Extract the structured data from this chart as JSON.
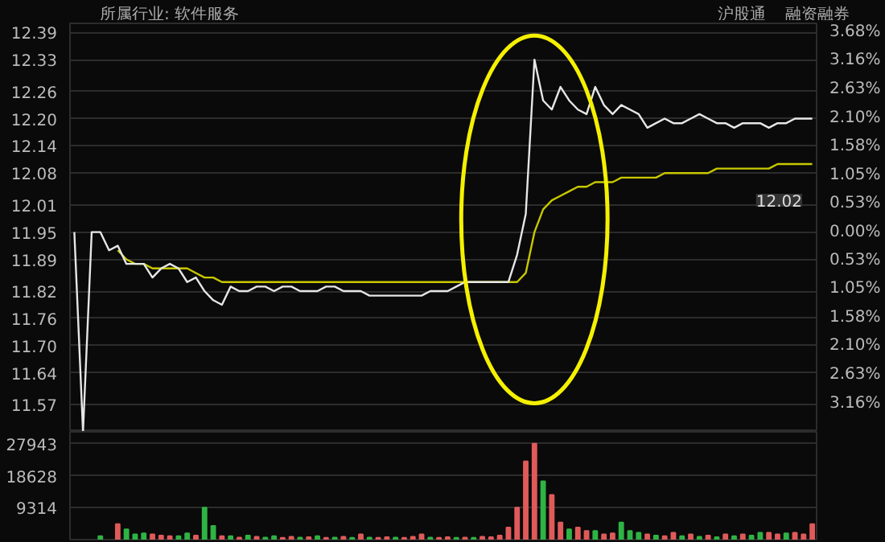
{
  "chart_data": [
    {
      "type": "line",
      "title": "所属行业: 软件服务",
      "annotations": [
        "沪股通",
        "融资融券",
        "12.02"
      ],
      "categories": [
        null,
        null,
        null,
        null,
        null,
        null,
        null,
        null,
        null,
        null,
        null,
        null,
        null,
        null,
        null,
        null,
        null,
        null,
        null,
        null,
        null,
        null,
        null,
        null,
        null,
        null,
        null,
        null,
        null,
        null,
        null,
        null,
        null,
        null,
        null,
        null,
        null,
        null,
        null,
        null,
        null,
        null,
        null,
        null,
        null,
        null,
        null,
        null,
        null,
        null,
        null,
        null,
        null,
        null,
        null,
        null,
        null,
        null,
        null,
        null,
        null,
        null,
        null,
        null,
        null,
        null,
        null,
        null,
        null,
        null,
        null,
        null,
        null,
        null,
        null,
        null,
        null,
        null,
        null,
        null,
        null,
        null,
        null,
        null,
        null,
        null
      ],
      "ylim": [
        11.51,
        12.41
      ],
      "yticks": [
        11.57,
        11.64,
        {
          "value": 11.7,
          "label": "11.70"
        },
        11.76,
        11.82,
        11.89,
        11.95,
        12.01,
        12.08,
        12.14,
        {
          "value": 12.2,
          "label": "12.20"
        },
        12.26,
        12.33,
        12.39
      ],
      "y2lim": [
        -3.682,
        3.849
      ],
      "y2ticks": [
        {
          "value": -3.16,
          "label": "3.16%"
        },
        {
          "value": -2.63,
          "label": "2.63%"
        },
        {
          "value": -2.1,
          "label": "2.10%"
        },
        {
          "value": -1.58,
          "label": "1.58%"
        },
        {
          "value": -1.05,
          "label": "1.05%"
        },
        {
          "value": -0.53,
          "label": "0.53%"
        },
        "0.00%",
        "0.53%",
        "1.05%",
        "1.58%",
        "2.10%",
        "2.63%",
        "3.16%",
        "3.68%"
      ],
      "grid": "y",
      "series": [
        {
          "color": "#e6e6e6",
          "values": [
            11.95,
            11.51,
            11.95,
            11.95,
            11.91,
            11.92,
            11.88,
            11.88,
            11.88,
            11.85,
            11.87,
            11.88,
            11.87,
            11.84,
            11.85,
            11.82,
            11.8,
            11.79,
            11.83,
            11.82,
            11.82,
            11.83,
            11.83,
            11.82,
            11.83,
            11.83,
            11.82,
            11.82,
            11.82,
            11.83,
            11.83,
            11.82,
            11.82,
            11.82,
            11.81,
            11.81,
            11.81,
            11.81,
            11.81,
            11.81,
            11.81,
            11.82,
            11.82,
            11.82,
            11.83,
            11.84,
            11.84,
            11.84,
            11.84,
            11.84,
            11.84,
            11.9,
            11.99,
            12.33,
            12.24,
            12.22,
            12.27,
            12.24,
            12.22,
            12.21,
            12.27,
            12.23,
            12.21,
            12.23,
            12.22,
            12.21,
            12.18,
            12.19,
            12.2,
            12.19,
            12.19,
            12.2,
            12.21,
            12.2,
            12.19,
            12.19,
            12.18,
            12.19,
            12.19,
            12.19,
            12.18,
            12.19,
            12.19,
            12.2,
            12.2,
            12.2
          ]
        },
        {
          "color": "#c8c800",
          "values": [
            null,
            null,
            null,
            null,
            null,
            11.91,
            11.89,
            11.88,
            11.88,
            11.87,
            11.87,
            11.87,
            11.87,
            11.87,
            11.86,
            11.85,
            11.85,
            11.84,
            11.84,
            11.84,
            11.84,
            11.84,
            11.84,
            11.84,
            11.84,
            11.84,
            11.84,
            11.84,
            11.84,
            11.84,
            11.84,
            11.84,
            11.84,
            11.84,
            11.84,
            11.84,
            11.84,
            11.84,
            11.84,
            11.84,
            11.84,
            11.84,
            11.84,
            11.84,
            11.84,
            11.84,
            11.84,
            11.84,
            11.84,
            11.84,
            11.84,
            11.84,
            11.86,
            11.95,
            12.0,
            12.02,
            12.03,
            12.04,
            12.05,
            12.05,
            12.06,
            12.06,
            12.06,
            12.07,
            12.07,
            12.07,
            12.07,
            12.07,
            12.08,
            12.08,
            12.08,
            12.08,
            12.08,
            12.08,
            12.09,
            12.09,
            12.09,
            12.09,
            12.09,
            12.09,
            12.09,
            12.1,
            12.1,
            12.1,
            12.1,
            12.1
          ]
        }
      ]
    },
    {
      "type": "bar",
      "categories": [
        null,
        null,
        null,
        null,
        null,
        null,
        null,
        null,
        null,
        null,
        null,
        null,
        null,
        null,
        null,
        null,
        null,
        null,
        null,
        null,
        null,
        null,
        null,
        null,
        null,
        null,
        null,
        null,
        null,
        null,
        null,
        null,
        null,
        null,
        null,
        null,
        null,
        null,
        null,
        null,
        null,
        null,
        null,
        null,
        null,
        null,
        null,
        null,
        null,
        null,
        null,
        null,
        null,
        null,
        null,
        null,
        null,
        null,
        null,
        null,
        null,
        null,
        null,
        null,
        null,
        null,
        null,
        null,
        null,
        null,
        null,
        null,
        null,
        null,
        null,
        null,
        null,
        null,
        null,
        null,
        null,
        null,
        null,
        null,
        null,
        null
      ],
      "ylim": [
        0,
        31400
      ],
      "yticks": [
        9314,
        18628,
        27943
      ],
      "grid": "y",
      "values": [
        null,
        null,
        null,
        1000,
        null,
        4500,
        3000,
        1500,
        1800,
        1500,
        1200,
        1000,
        1000,
        1800,
        1200,
        9300,
        4000,
        1000,
        1000,
        600,
        1200,
        800,
        600,
        1000,
        500,
        800,
        600,
        700,
        1000,
        500,
        600,
        800,
        500,
        1500,
        600,
        500,
        700,
        600,
        500,
        800,
        1500,
        600,
        500,
        700,
        500,
        600,
        500,
        800,
        700,
        1200,
        3500,
        9300,
        22800,
        27943,
        17000,
        13000,
        5000,
        3000,
        3500,
        2500,
        2500,
        1500,
        1800,
        5000,
        2500,
        2000,
        1500,
        1200,
        1000,
        2000,
        1000,
        1500,
        800,
        1200,
        700,
        1500,
        1000,
        1500,
        1200,
        2000,
        2000,
        1500,
        1800,
        2000,
        1500,
        4500
      ],
      "colors": [
        "#2fb344",
        "#2fb344",
        "#2fb344",
        "#2fb344",
        "#2fb344",
        "#e05a5a",
        "#2fb344",
        "#2fb344",
        "#2fb344",
        "#e05a5a",
        "#e05a5a",
        "#e05a5a",
        "#2fb344",
        "#2fb344",
        "#e05a5a",
        "#2fb344",
        "#2fb344",
        "#e05a5a",
        "#2fb344",
        "#e05a5a",
        "#2fb344",
        "#e05a5a",
        "#2fb344",
        "#2fb344",
        "#e05a5a",
        "#e05a5a",
        "#2fb344",
        "#e05a5a",
        "#2fb344",
        "#e05a5a",
        "#2fb344",
        "#e05a5a",
        "#2fb344",
        "#e05a5a",
        "#2fb344",
        "#e05a5a",
        "#e05a5a",
        "#2fb344",
        "#e05a5a",
        "#e05a5a",
        "#e05a5a",
        "#2fb344",
        "#e05a5a",
        "#e05a5a",
        "#2fb344",
        "#e05a5a",
        "#2fb344",
        "#e05a5a",
        "#e05a5a",
        "#e05a5a",
        "#e05a5a",
        "#e05a5a",
        "#e05a5a",
        "#e05a5a",
        "#2fb344",
        "#e05a5a",
        "#e05a5a",
        "#2fb344",
        "#e05a5a",
        "#e05a5a",
        "#2fb344",
        "#e05a5a",
        "#e05a5a",
        "#2fb344",
        "#2fb344",
        "#2fb344",
        "#e05a5a",
        "#2fb344",
        "#e05a5a",
        "#e05a5a",
        "#2fb344",
        "#e05a5a",
        "#2fb344",
        "#e05a5a",
        "#2fb344",
        "#e05a5a",
        "#2fb344",
        "#e05a5a",
        "#2fb344",
        "#2fb344",
        "#e05a5a",
        "#e05a5a",
        "#2fb344",
        "#e05a5a",
        "#e05a5a",
        "#e05a5a"
      ]
    }
  ]
}
